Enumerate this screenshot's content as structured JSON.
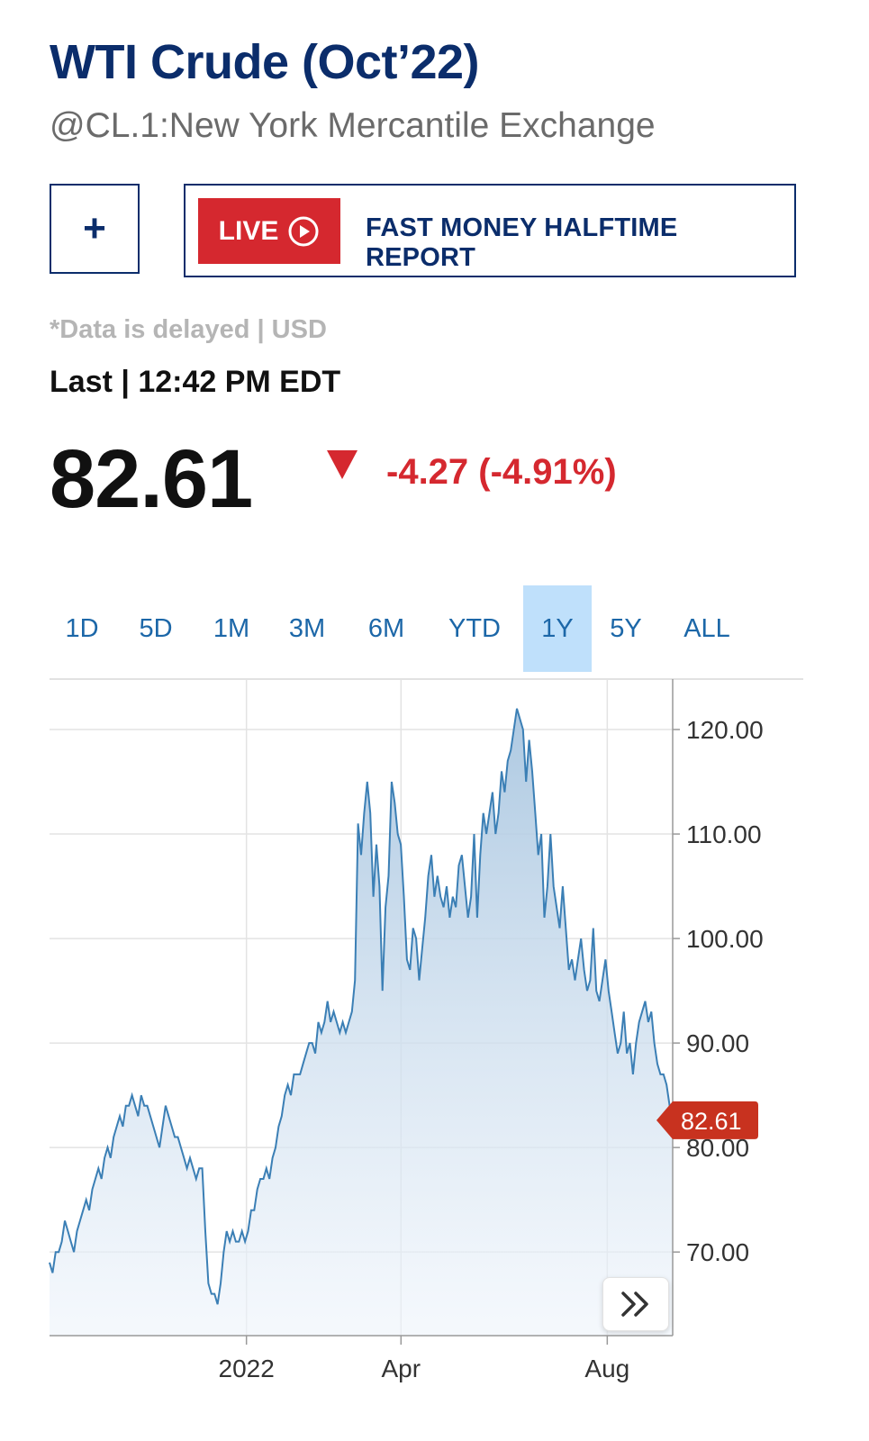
{
  "header": {
    "title": "WTI Crude (Oct’22)",
    "subtitle": "@CL.1:New York Mercantile Exchange"
  },
  "actions": {
    "add_label": "+",
    "live_badge": "LIVE",
    "live_program": "FAST MONEY HALFTIME REPORT"
  },
  "quote": {
    "delayed_note": "*Data is delayed | USD",
    "last_label": "Last | 12:42 PM EDT",
    "price": "82.61",
    "change": "-4.27 (-4.91%)",
    "direction": "down",
    "down_color": "#d5282f"
  },
  "tabs": [
    {
      "label": "1D",
      "active": false
    },
    {
      "label": "5D",
      "active": false
    },
    {
      "label": "1M",
      "active": false
    },
    {
      "label": "3M",
      "active": false
    },
    {
      "label": "6M",
      "active": false
    },
    {
      "label": "YTD",
      "active": false
    },
    {
      "label": "1Y",
      "active": true
    },
    {
      "label": "5Y",
      "active": false
    },
    {
      "label": "ALL",
      "active": false
    }
  ],
  "chart_data": {
    "type": "area",
    "x_labels": [
      "2022",
      "Apr",
      "Aug"
    ],
    "y_ticks": [
      "70.00",
      "80.00",
      "90.00",
      "100.00",
      "110.00",
      "120.00"
    ],
    "ylim": [
      62,
      125
    ],
    "current_value_label": "82.61",
    "current_value": 82.61,
    "line_color": "#3b7fb5",
    "marker_color": "#c8321f",
    "series": [
      {
        "values": [
          69,
          68,
          70,
          70,
          71,
          73,
          72,
          71,
          70,
          72,
          73,
          74,
          75,
          74,
          76,
          77,
          78,
          77,
          79,
          80,
          79,
          81,
          82,
          83,
          82,
          84,
          84,
          85,
          84,
          83,
          85,
          84,
          84,
          83,
          82,
          81,
          80,
          82,
          84,
          83,
          82,
          81,
          81,
          80,
          79,
          78,
          79,
          78,
          77,
          78,
          78,
          72,
          67,
          66,
          66,
          65,
          67,
          70,
          72,
          71,
          72,
          71,
          71,
          72,
          71,
          72,
          74,
          74,
          76,
          77,
          77,
          78,
          77,
          79,
          80,
          82,
          83,
          85,
          86,
          85,
          87,
          87,
          87,
          88,
          89,
          90,
          90,
          89,
          92,
          91,
          92,
          94,
          92,
          93,
          92,
          91,
          92,
          91,
          92,
          93,
          96,
          111,
          108,
          112,
          115,
          112,
          104,
          109,
          105,
          95,
          103,
          106,
          115,
          113,
          110,
          109,
          104,
          98,
          97,
          101,
          100,
          96,
          99,
          102,
          106,
          108,
          104,
          106,
          104,
          103,
          105,
          102,
          104,
          103,
          107,
          108,
          105,
          102,
          104,
          110,
          102,
          108,
          112,
          110,
          112,
          114,
          110,
          112,
          116,
          114,
          117,
          118,
          120,
          122,
          121,
          120,
          115,
          119,
          116,
          112,
          108,
          110,
          102,
          105,
          110,
          105,
          103,
          101,
          105,
          101,
          97,
          98,
          96,
          98,
          100,
          97,
          95,
          96,
          101,
          95,
          94,
          96,
          98,
          95,
          93,
          91,
          89,
          90,
          93,
          89,
          90,
          87,
          90,
          92,
          93,
          94,
          92,
          93,
          90,
          88,
          87,
          87,
          86,
          84,
          82.61
        ]
      }
    ]
  }
}
